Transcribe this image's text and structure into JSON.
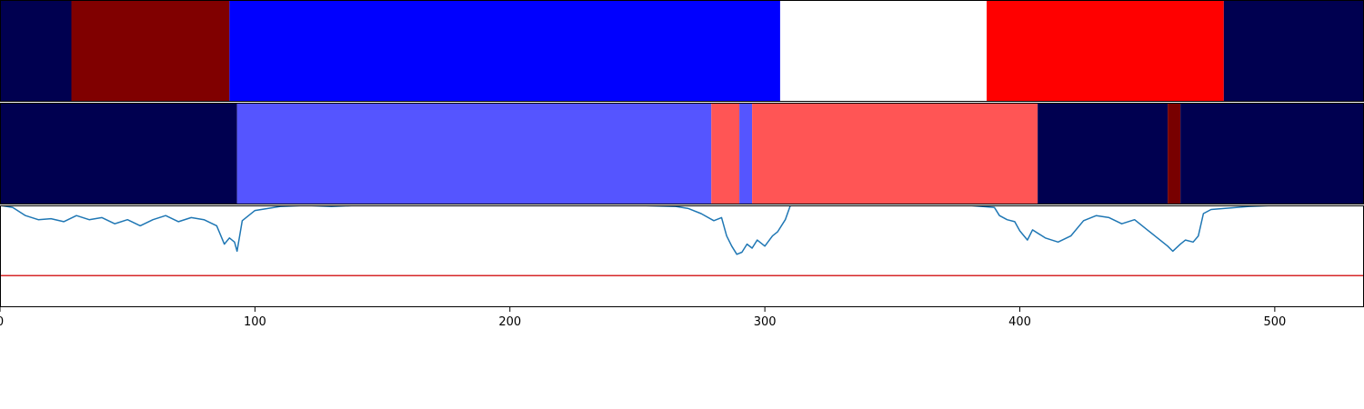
{
  "chart_data": {
    "type": "heatmap",
    "xlim": [
      0,
      535
    ],
    "x_ticks": [
      0,
      100,
      200,
      300,
      400,
      500
    ],
    "x_tick_labels": [
      "0",
      "100",
      "200",
      "300",
      "400",
      "500"
    ],
    "legend": "none",
    "grid": false,
    "band_colors": {
      "navy": "#000050",
      "darkred": "#800000",
      "blue": "#0000ff",
      "white": "#ffffff",
      "red": "#ff0000",
      "lightblue": "#5555ff",
      "lightred": "#ff5555",
      "maroon": "#780000"
    },
    "band_rows": [
      {
        "segments": [
          {
            "start": 0,
            "end": 28,
            "color": "navy"
          },
          {
            "start": 28,
            "end": 90,
            "color": "darkred"
          },
          {
            "start": 90,
            "end": 306,
            "color": "blue"
          },
          {
            "start": 306,
            "end": 387,
            "color": "white"
          },
          {
            "start": 387,
            "end": 480,
            "color": "red"
          },
          {
            "start": 480,
            "end": 535,
            "color": "navy"
          }
        ]
      },
      {
        "segments": [
          {
            "start": 0,
            "end": 93,
            "color": "navy"
          },
          {
            "start": 93,
            "end": 279,
            "color": "lightblue"
          },
          {
            "start": 279,
            "end": 290,
            "color": "lightred"
          },
          {
            "start": 290,
            "end": 295,
            "color": "lightblue"
          },
          {
            "start": 295,
            "end": 407,
            "color": "lightred"
          },
          {
            "start": 407,
            "end": 458,
            "color": "navy"
          },
          {
            "start": 458,
            "end": 463,
            "color": "maroon"
          },
          {
            "start": 463,
            "end": 535,
            "color": "navy"
          }
        ]
      }
    ],
    "line_panel": {
      "ylim": [
        0,
        1
      ],
      "threshold": {
        "value": 0.31,
        "color": "#d62728"
      },
      "series": {
        "color": "#1f77b4",
        "x": [
          0,
          5,
          10,
          15,
          20,
          25,
          30,
          35,
          40,
          45,
          50,
          55,
          60,
          65,
          70,
          75,
          80,
          85,
          88,
          90,
          92,
          93,
          95,
          100,
          105,
          110,
          120,
          130,
          140,
          150,
          200,
          250,
          265,
          270,
          275,
          280,
          283,
          285,
          287,
          289,
          291,
          293,
          295,
          297,
          300,
          303,
          305,
          308,
          310,
          320,
          340,
          360,
          380,
          390,
          392,
          395,
          398,
          400,
          403,
          405,
          410,
          415,
          420,
          425,
          430,
          435,
          440,
          445,
          450,
          455,
          458,
          460,
          463,
          465,
          468,
          470,
          472,
          475,
          480,
          490,
          500,
          535
        ],
        "y": [
          1.0,
          0.98,
          0.9,
          0.86,
          0.87,
          0.84,
          0.9,
          0.86,
          0.88,
          0.82,
          0.86,
          0.8,
          0.86,
          0.9,
          0.84,
          0.88,
          0.86,
          0.8,
          0.62,
          0.68,
          0.64,
          0.55,
          0.85,
          0.95,
          0.97,
          0.99,
          1.0,
          0.99,
          1.0,
          1.0,
          1.0,
          1.0,
          0.99,
          0.97,
          0.92,
          0.85,
          0.88,
          0.7,
          0.6,
          0.52,
          0.54,
          0.62,
          0.58,
          0.66,
          0.6,
          0.7,
          0.74,
          0.86,
          1.0,
          1.0,
          1.0,
          1.0,
          1.0,
          0.98,
          0.9,
          0.86,
          0.84,
          0.75,
          0.66,
          0.76,
          0.68,
          0.64,
          0.7,
          0.85,
          0.9,
          0.88,
          0.82,
          0.86,
          0.76,
          0.66,
          0.6,
          0.55,
          0.62,
          0.66,
          0.64,
          0.7,
          0.92,
          0.96,
          0.97,
          0.99,
          1.0,
          1.0
        ]
      }
    }
  }
}
